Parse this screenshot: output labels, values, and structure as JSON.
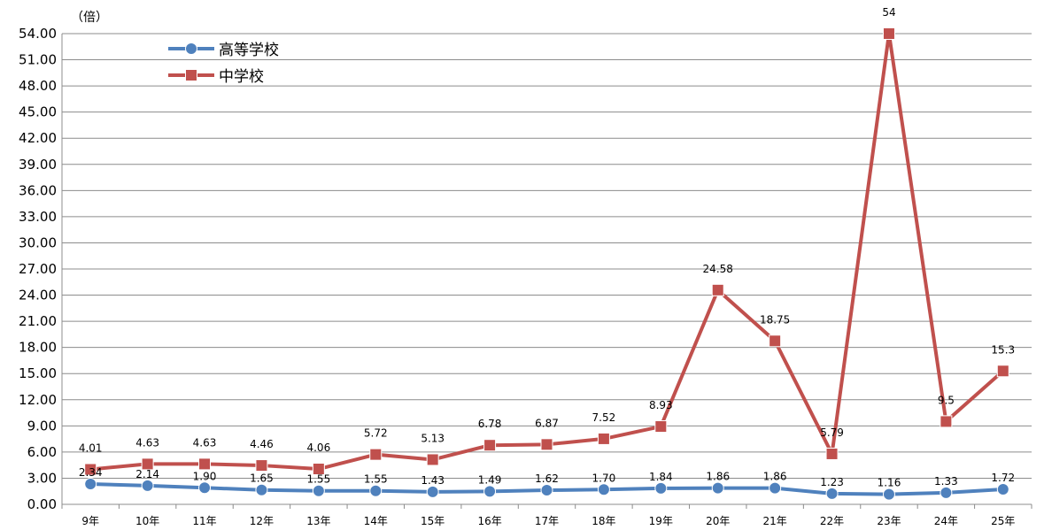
{
  "chart_data": {
    "type": "line",
    "unit_label": "（倍）",
    "categories": [
      "9年",
      "10年",
      "11年",
      "12年",
      "13年",
      "14年",
      "15年",
      "16年",
      "17年",
      "18年",
      "19年",
      "20年",
      "21年",
      "22年",
      "23年",
      "24年",
      "25年"
    ],
    "ylim": [
      0,
      54
    ],
    "ytick_step": 3,
    "ytick_labels": [
      "0.00",
      "3.00",
      "6.00",
      "9.00",
      "12.00",
      "15.00",
      "18.00",
      "21.00",
      "24.00",
      "27.00",
      "30.00",
      "33.00",
      "36.00",
      "39.00",
      "42.00",
      "45.00",
      "48.00",
      "51.00",
      "54.00"
    ],
    "grid": true,
    "legend_position": "top-left",
    "series": [
      {
        "name": "高等学校",
        "color": "#4F81BD",
        "marker": "circle",
        "values": [
          2.34,
          2.14,
          1.9,
          1.65,
          1.55,
          1.55,
          1.43,
          1.49,
          1.62,
          1.7,
          1.84,
          1.86,
          1.86,
          1.23,
          1.16,
          1.33,
          1.72
        ],
        "labels": [
          "2.34",
          "2.14",
          "1.90",
          "1.65",
          "1.55",
          "1.55",
          "1.43",
          "1.49",
          "1.62",
          "1.70",
          "1.84",
          "1.86",
          "1.86",
          "1.23",
          "1.16",
          "1.33",
          "1.72"
        ]
      },
      {
        "name": "中学校",
        "color": "#C0504D",
        "marker": "square",
        "values": [
          4.01,
          4.63,
          4.63,
          4.46,
          4.06,
          5.72,
          5.13,
          6.78,
          6.87,
          7.52,
          8.93,
          24.58,
          18.75,
          5.79,
          54,
          9.5,
          15.3
        ],
        "labels": [
          "4.01",
          "4.63",
          "4.63",
          "4.46",
          "4.06",
          "5.72",
          "5.13",
          "6.78",
          "6.87",
          "7.52",
          "8.93",
          "24.58",
          "18.75",
          "5.79",
          "54",
          "9.5",
          "15.3"
        ]
      }
    ]
  }
}
